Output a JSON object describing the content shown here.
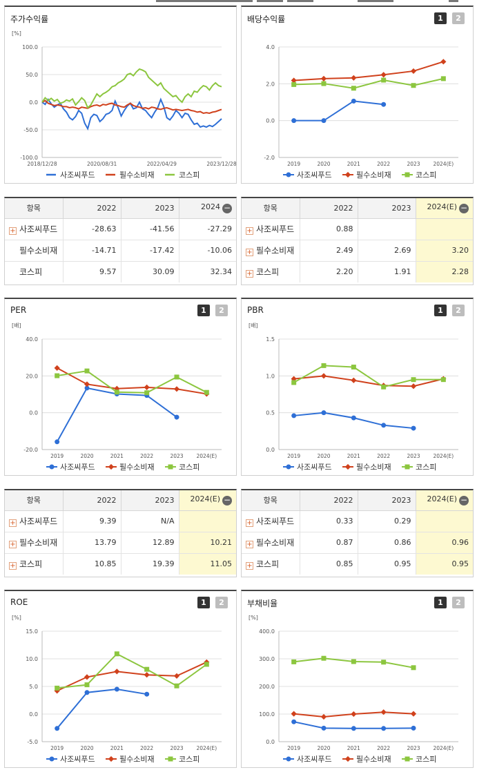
{
  "colors": {
    "company": "#2e6fd6",
    "sector": "#d0411c",
    "kospi": "#8cc63f",
    "highlight": "#fdf9d1"
  },
  "panels": [
    {
      "key": "stock",
      "title": "주가수익률",
      "buttons": [],
      "table": {
        "headers": [
          "항목",
          "2022",
          "2023",
          "2024"
        ],
        "head_icon": "minus-icon",
        "highlight_last": false,
        "rows": [
          {
            "label": "사조씨푸드",
            "plus": true,
            "values": [
              "-28.63",
              "-41.56",
              "-27.29"
            ]
          },
          {
            "label": "필수소비재",
            "plus": false,
            "values": [
              "-14.71",
              "-17.42",
              "-10.06"
            ]
          },
          {
            "label": "코스피",
            "plus": false,
            "values": [
              "9.57",
              "30.09",
              "32.34"
            ]
          }
        ]
      }
    },
    {
      "key": "dividend",
      "title": "배당수익률",
      "buttons": [
        "1",
        "2"
      ],
      "table": {
        "headers": [
          "항목",
          "2022",
          "2023",
          "2024(E)"
        ],
        "head_icon": "minus-icon",
        "highlight_last": true,
        "rows": [
          {
            "label": "사조씨푸드",
            "plus": true,
            "values": [
              "0.88",
              "",
              ""
            ]
          },
          {
            "label": "필수소비재",
            "plus": true,
            "values": [
              "2.49",
              "2.69",
              "3.20"
            ]
          },
          {
            "label": "코스피",
            "plus": true,
            "values": [
              "2.20",
              "1.91",
              "2.28"
            ]
          }
        ]
      }
    },
    {
      "key": "per",
      "title": "PER",
      "buttons": [
        "1",
        "2"
      ],
      "table": {
        "headers": [
          "항목",
          "2022",
          "2023",
          "2024(E)"
        ],
        "head_icon": "minus-icon",
        "highlight_last": true,
        "rows": [
          {
            "label": "사조씨푸드",
            "plus": true,
            "values": [
              "9.39",
              "N/A",
              ""
            ]
          },
          {
            "label": "필수소비재",
            "plus": true,
            "values": [
              "13.79",
              "12.89",
              "10.21"
            ]
          },
          {
            "label": "코스피",
            "plus": true,
            "values": [
              "10.85",
              "19.39",
              "11.05"
            ]
          }
        ]
      }
    },
    {
      "key": "pbr",
      "title": "PBR",
      "buttons": [
        "1",
        "2"
      ],
      "table": {
        "headers": [
          "항목",
          "2022",
          "2023",
          "2024(E)"
        ],
        "head_icon": "minus-icon",
        "highlight_last": true,
        "rows": [
          {
            "label": "사조씨푸드",
            "plus": true,
            "values": [
              "0.33",
              "0.29",
              ""
            ]
          },
          {
            "label": "필수소비재",
            "plus": true,
            "values": [
              "0.87",
              "0.86",
              "0.96"
            ]
          },
          {
            "label": "코스피",
            "plus": true,
            "values": [
              "0.85",
              "0.95",
              "0.95"
            ]
          }
        ]
      }
    },
    {
      "key": "roe",
      "title": "ROE",
      "buttons": [
        "1",
        "2"
      ],
      "table": null
    },
    {
      "key": "debt",
      "title": "부채비율",
      "buttons": [
        "1",
        "2"
      ],
      "table": null
    }
  ],
  "chart_data": [
    {
      "key": "stock",
      "type": "line",
      "title": "주가수익률",
      "unit_label": "[%]",
      "ylim": [
        -100,
        100
      ],
      "yticks": [
        "100.0",
        "50.0",
        "0.0",
        "-50.0",
        "-100.0"
      ],
      "xticks": [
        "2018/12/28",
        "2020/08/31",
        "2022/04/29",
        "2023/12/28"
      ],
      "legend": [
        "사조씨푸드",
        "필수소비재",
        "코스피"
      ],
      "series": [
        {
          "name": "사조씨푸드",
          "values": [
            0,
            -4,
            5,
            -3,
            -9,
            -5,
            -2,
            -12,
            -18,
            -28,
            -32,
            -26,
            -15,
            -20,
            -38,
            -48,
            -28,
            -22,
            -24,
            -35,
            -30,
            -22,
            -20,
            -15,
            2,
            -10,
            -25,
            -15,
            -7,
            -2,
            -12,
            -10,
            0,
            -12,
            -15,
            -22,
            -28,
            -18,
            -10,
            5,
            -8,
            -28,
            -32,
            -25,
            -15,
            -20,
            -28,
            -20,
            -22,
            -32,
            -40,
            -38,
            -45,
            -43,
            -45,
            -42,
            -44,
            -40,
            -35,
            -30
          ]
        },
        {
          "name": "필수소비재",
          "values": [
            0,
            3,
            -2,
            -4,
            -6,
            -5,
            -6,
            -8,
            -8,
            -10,
            -9,
            -10,
            -12,
            -9,
            -10,
            -11,
            -8,
            -6,
            -5,
            -7,
            -4,
            -5,
            -3,
            -2,
            -5,
            -6,
            -8,
            -9,
            -5,
            -2,
            -6,
            -8,
            -9,
            -11,
            -10,
            -12,
            -9,
            -10,
            -12,
            -13,
            -11,
            -10,
            -12,
            -14,
            -13,
            -14,
            -15,
            -14,
            -13,
            -15,
            -16,
            -18,
            -17,
            -20,
            -19,
            -20,
            -18,
            -17,
            -15,
            -13
          ]
        },
        {
          "name": "코스피",
          "values": [
            0,
            8,
            3,
            7,
            2,
            5,
            -2,
            0,
            4,
            2,
            6,
            -5,
            1,
            8,
            3,
            -10,
            -5,
            5,
            15,
            10,
            15,
            18,
            22,
            28,
            30,
            35,
            38,
            42,
            50,
            52,
            48,
            55,
            60,
            58,
            55,
            45,
            40,
            35,
            30,
            35,
            25,
            20,
            15,
            10,
            12,
            5,
            0,
            10,
            15,
            10,
            20,
            18,
            25,
            30,
            28,
            22,
            30,
            35,
            30,
            28
          ]
        }
      ]
    },
    {
      "key": "dividend",
      "type": "line",
      "title": "배당수익률",
      "unit_label": "",
      "ylim": [
        -2,
        4
      ],
      "yticks": [
        "4.0",
        "2.0",
        "0.0",
        "-2.0"
      ],
      "categories": [
        "2019",
        "2020",
        "2021",
        "2022",
        "2023",
        "2024(E)"
      ],
      "legend": [
        "사조씨푸드",
        "필수소비재",
        "코스피"
      ],
      "series": [
        {
          "name": "사조씨푸드",
          "values": [
            0.0,
            0.0,
            1.06,
            0.88,
            null,
            null
          ]
        },
        {
          "name": "필수소비재",
          "values": [
            2.18,
            2.28,
            2.32,
            2.49,
            2.69,
            3.2
          ]
        },
        {
          "name": "코스피",
          "values": [
            1.96,
            2.01,
            1.76,
            2.2,
            1.91,
            2.28
          ]
        }
      ]
    },
    {
      "key": "per",
      "type": "line",
      "title": "PER",
      "unit_label": "[배]",
      "ylim": [
        -20,
        40
      ],
      "yticks": [
        "40.0",
        "20.0",
        "0.0",
        "-20.0"
      ],
      "categories": [
        "2019",
        "2020",
        "2021",
        "2022",
        "2023",
        "2024(E)"
      ],
      "legend": [
        "사조씨푸드",
        "필수소비재",
        "코스피"
      ],
      "series": [
        {
          "name": "사조씨푸드",
          "values": [
            -15.8,
            13.4,
            10.2,
            9.39,
            -2.4,
            null
          ]
        },
        {
          "name": "필수소비재",
          "values": [
            24.3,
            15.5,
            13.1,
            13.79,
            12.89,
            10.21
          ]
        },
        {
          "name": "코스피",
          "values": [
            20.1,
            22.7,
            11.2,
            10.85,
            19.39,
            11.05
          ]
        }
      ]
    },
    {
      "key": "pbr",
      "type": "line",
      "title": "PBR",
      "unit_label": "[배]",
      "ylim": [
        0,
        1.5
      ],
      "yticks": [
        "1.5",
        "1.0",
        "0.5",
        "0.0"
      ],
      "categories": [
        "2019",
        "2020",
        "2021",
        "2022",
        "2023",
        "2024(E)"
      ],
      "legend": [
        "사조씨푸드",
        "필수소비재",
        "코스피"
      ],
      "series": [
        {
          "name": "사조씨푸드",
          "values": [
            0.46,
            0.5,
            0.43,
            0.33,
            0.29,
            null
          ]
        },
        {
          "name": "필수소비재",
          "values": [
            0.96,
            1.0,
            0.94,
            0.87,
            0.86,
            0.96
          ]
        },
        {
          "name": "코스피",
          "values": [
            0.91,
            1.14,
            1.12,
            0.85,
            0.95,
            0.95
          ]
        }
      ]
    },
    {
      "key": "roe",
      "type": "line",
      "title": "ROE",
      "unit_label": "[%]",
      "ylim": [
        -5,
        15
      ],
      "yticks": [
        "15.0",
        "10.0",
        "5.0",
        "0.0",
        "-5.0"
      ],
      "categories": [
        "2019",
        "2020",
        "2021",
        "2022",
        "2023",
        "2024(E)"
      ],
      "legend": [
        "사조씨푸드",
        "필수소비재",
        "코스피"
      ],
      "series": [
        {
          "name": "사조씨푸드",
          "values": [
            -2.6,
            3.9,
            4.5,
            3.6,
            null,
            null
          ]
        },
        {
          "name": "필수소비재",
          "values": [
            4.2,
            6.7,
            7.7,
            7.1,
            6.9,
            9.4
          ]
        },
        {
          "name": "코스피",
          "values": [
            4.7,
            5.3,
            10.9,
            8.1,
            5.1,
            9.0
          ]
        }
      ]
    },
    {
      "key": "debt",
      "type": "line",
      "title": "부채비율",
      "unit_label": "[%]",
      "ylim": [
        0,
        400
      ],
      "yticks": [
        "400.0",
        "300.0",
        "200.0",
        "100.0",
        "0.0"
      ],
      "categories": [
        "2019",
        "2020",
        "2021",
        "2022",
        "2023",
        "2024(E)"
      ],
      "legend": [
        "사조씨푸드",
        "필수소비재",
        "코스피"
      ],
      "series": [
        {
          "name": "사조씨푸드",
          "values": [
            72,
            49,
            48,
            48,
            49,
            null
          ]
        },
        {
          "name": "필수소비재",
          "values": [
            101,
            90,
            100,
            107,
            101,
            null
          ]
        },
        {
          "name": "코스피",
          "values": [
            289,
            302,
            290,
            288,
            268,
            null
          ]
        }
      ]
    }
  ]
}
